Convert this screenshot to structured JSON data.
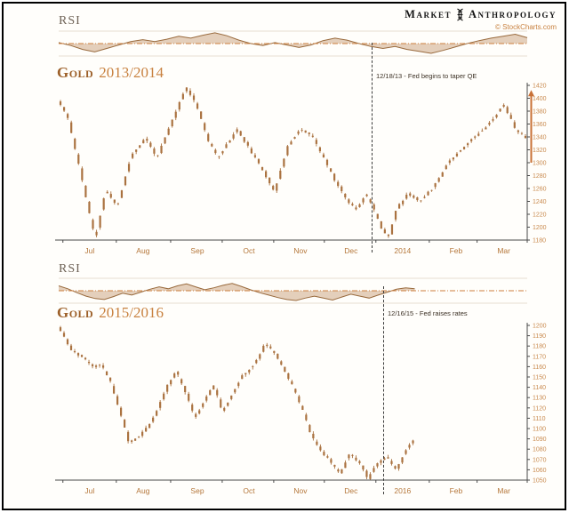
{
  "brand": {
    "market": "Market",
    "anthropology": "Anthropology",
    "copyright": "© StockCharts.com"
  },
  "colors": {
    "candle": "#aa7240",
    "title": "#9c5f28",
    "accent": "#c8813f",
    "axis_text": "#c98a4e",
    "month_text": "#b5773a",
    "rsi_line": "#996a3d",
    "rsi_fill": "rgba(178,121,70,0.35)",
    "rsi_centerline": "#cc7f3e",
    "axis_line": "#4a4a4a",
    "arrow": "#c87137",
    "dashed": "#3b3b3b"
  },
  "chart_data": [
    {
      "type": "candlestick",
      "rsi_label": "RSI",
      "title": "Gold",
      "subtitle": "2013/2014",
      "annotation": "12/18/13 - Fed begins to taper QE",
      "legend_position": "none",
      "grid": false,
      "x_labels": [
        {
          "label": "Jul",
          "f": 0.066
        },
        {
          "label": "Aug",
          "f": 0.18
        },
        {
          "label": "Sep",
          "f": 0.296
        },
        {
          "label": "Oct",
          "f": 0.406
        },
        {
          "label": "Nov",
          "f": 0.516
        },
        {
          "label": "Dec",
          "f": 0.624
        },
        {
          "label": "2014",
          "f": 0.734
        },
        {
          "label": "Feb",
          "f": 0.848
        },
        {
          "label": "Mar",
          "f": 0.95
        }
      ],
      "y_ticks": [
        1420,
        1400,
        1380,
        1360,
        1340,
        1320,
        1300,
        1280,
        1260,
        1240,
        1220,
        1200,
        1180
      ],
      "y_range": [
        1180,
        1420
      ],
      "x_max": 1.0,
      "bar_count": 130,
      "event_f": 0.67,
      "rally_arrow": true,
      "price_anchors": [
        [
          0.0,
          1395
        ],
        [
          0.02,
          1368
        ],
        [
          0.045,
          1290
        ],
        [
          0.068,
          1212
        ],
        [
          0.078,
          1182
        ],
        [
          0.1,
          1258
        ],
        [
          0.125,
          1232
        ],
        [
          0.155,
          1312
        ],
        [
          0.185,
          1338
        ],
        [
          0.21,
          1308
        ],
        [
          0.24,
          1362
        ],
        [
          0.272,
          1418
        ],
        [
          0.295,
          1388
        ],
        [
          0.32,
          1332
        ],
        [
          0.34,
          1308
        ],
        [
          0.36,
          1330
        ],
        [
          0.38,
          1352
        ],
        [
          0.41,
          1318
        ],
        [
          0.44,
          1282
        ],
        [
          0.46,
          1256
        ],
        [
          0.49,
          1328
        ],
        [
          0.515,
          1352
        ],
        [
          0.54,
          1342
        ],
        [
          0.565,
          1308
        ],
        [
          0.59,
          1272
        ],
        [
          0.615,
          1242
        ],
        [
          0.635,
          1228
        ],
        [
          0.655,
          1252
        ],
        [
          0.67,
          1232
        ],
        [
          0.69,
          1196
        ],
        [
          0.705,
          1186
        ],
        [
          0.72,
          1228
        ],
        [
          0.745,
          1252
        ],
        [
          0.77,
          1240
        ],
        [
          0.8,
          1262
        ],
        [
          0.83,
          1300
        ],
        [
          0.86,
          1322
        ],
        [
          0.89,
          1342
        ],
        [
          0.92,
          1362
        ],
        [
          0.95,
          1390
        ],
        [
          0.975,
          1352
        ],
        [
          1.0,
          1336
        ]
      ],
      "rsi": [
        52,
        46,
        38,
        33,
        40,
        47,
        54,
        58,
        54,
        59,
        65,
        61,
        67,
        72,
        66,
        57,
        50,
        46,
        52,
        47,
        42,
        47,
        56,
        61,
        57,
        50,
        44,
        40,
        44,
        38,
        34,
        30,
        36,
        43,
        50,
        56,
        61,
        65,
        69,
        62
      ]
    },
    {
      "type": "candlestick",
      "rsi_label": "RSI",
      "title": "Gold",
      "subtitle": "2015/2016",
      "annotation": "12/16/15 - Fed raises rates",
      "legend_position": "none",
      "grid": false,
      "x_labels": [
        {
          "label": "Jul",
          "f": 0.066
        },
        {
          "label": "Aug",
          "f": 0.18
        },
        {
          "label": "Sep",
          "f": 0.296
        },
        {
          "label": "Oct",
          "f": 0.406
        },
        {
          "label": "Nov",
          "f": 0.516
        },
        {
          "label": "Dec",
          "f": 0.624
        },
        {
          "label": "2016",
          "f": 0.734
        },
        {
          "label": "Feb",
          "f": 0.848
        },
        {
          "label": "Mar",
          "f": 0.95
        }
      ],
      "y_ticks": [
        1200,
        1190,
        1180,
        1170,
        1160,
        1150,
        1140,
        1130,
        1120,
        1110,
        1100,
        1090,
        1080,
        1070,
        1060,
        1050
      ],
      "y_range": [
        1050,
        1200
      ],
      "x_max": 0.76,
      "bar_count": 100,
      "event_f": 0.693,
      "rally_arrow": false,
      "price_anchors": [
        [
          0.0,
          1198
        ],
        [
          0.012,
          1188
        ],
        [
          0.03,
          1174
        ],
        [
          0.05,
          1170
        ],
        [
          0.07,
          1160
        ],
        [
          0.09,
          1162
        ],
        [
          0.11,
          1146
        ],
        [
          0.13,
          1116
        ],
        [
          0.15,
          1086
        ],
        [
          0.17,
          1092
        ],
        [
          0.19,
          1102
        ],
        [
          0.21,
          1118
        ],
        [
          0.23,
          1140
        ],
        [
          0.25,
          1156
        ],
        [
          0.27,
          1136
        ],
        [
          0.29,
          1110
        ],
        [
          0.31,
          1126
        ],
        [
          0.33,
          1142
        ],
        [
          0.35,
          1116
        ],
        [
          0.37,
          1134
        ],
        [
          0.39,
          1150
        ],
        [
          0.42,
          1164
        ],
        [
          0.44,
          1182
        ],
        [
          0.46,
          1174
        ],
        [
          0.48,
          1158
        ],
        [
          0.5,
          1140
        ],
        [
          0.52,
          1118
        ],
        [
          0.54,
          1092
        ],
        [
          0.56,
          1078
        ],
        [
          0.58,
          1068
        ],
        [
          0.6,
          1056
        ],
        [
          0.62,
          1076
        ],
        [
          0.64,
          1068
        ],
        [
          0.66,
          1052
        ],
        [
          0.68,
          1066
        ],
        [
          0.7,
          1072
        ],
        [
          0.72,
          1060
        ],
        [
          0.74,
          1078
        ],
        [
          0.76,
          1092
        ]
      ],
      "rsi": [
        60,
        54,
        46,
        39,
        34,
        32,
        38,
        45,
        41,
        47,
        53,
        58,
        54,
        60,
        64,
        58,
        52,
        56,
        61,
        65,
        59,
        52,
        46,
        41,
        36,
        32,
        30,
        35,
        39,
        35,
        31,
        37,
        43,
        39,
        35,
        41,
        47,
        53,
        56,
        54
      ]
    }
  ]
}
